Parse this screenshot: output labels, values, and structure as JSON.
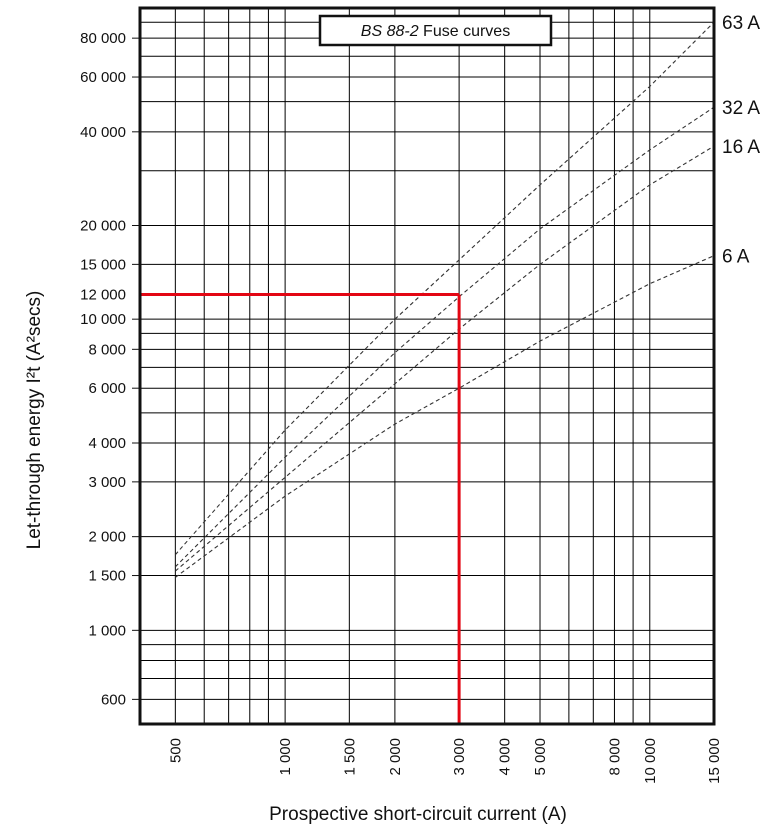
{
  "chart_data": {
    "type": "line",
    "title_italic": "BS 88-2",
    "title_rest": " Fuse curves",
    "xlabel": "Prospective short-circuit current (A)",
    "ylabel": "Let-through energy I²t (A²secs)",
    "xscale": "log",
    "yscale": "log",
    "xlim": [
      400,
      15000
    ],
    "ylim": [
      500,
      100000
    ],
    "grid": true,
    "x_grid": [
      500,
      600,
      700,
      800,
      900,
      1000,
      1500,
      2000,
      3000,
      4000,
      5000,
      6000,
      7000,
      8000,
      9000,
      10000,
      15000
    ],
    "y_grid": [
      600,
      700,
      800,
      900,
      1000,
      1500,
      2000,
      3000,
      4000,
      5000,
      6000,
      7000,
      8000,
      9000,
      10000,
      15000,
      20000,
      30000,
      40000,
      50000,
      60000,
      70000,
      80000,
      90000
    ],
    "x_ticks": [
      {
        "value": 500,
        "label": "500"
      },
      {
        "value": 1000,
        "label": "1 000"
      },
      {
        "value": 1500,
        "label": "1 500"
      },
      {
        "value": 2000,
        "label": "2 000"
      },
      {
        "value": 3000,
        "label": "3 000",
        "highlight": true
      },
      {
        "value": 4000,
        "label": "4 000"
      },
      {
        "value": 5000,
        "label": "5 000"
      },
      {
        "value": 8000,
        "label": "8 000"
      },
      {
        "value": 10000,
        "label": "10 000"
      },
      {
        "value": 15000,
        "label": "15 000"
      }
    ],
    "y_ticks": [
      {
        "value": 600,
        "label": "600"
      },
      {
        "value": 1000,
        "label": "1 000"
      },
      {
        "value": 1500,
        "label": "1 500"
      },
      {
        "value": 2000,
        "label": "2 000"
      },
      {
        "value": 3000,
        "label": "3 000"
      },
      {
        "value": 4000,
        "label": "4 000"
      },
      {
        "value": 6000,
        "label": "6 000"
      },
      {
        "value": 8000,
        "label": "8 000"
      },
      {
        "value": 10000,
        "label": "10 000"
      },
      {
        "value": 12000,
        "label": "12 000",
        "highlight": true
      },
      {
        "value": 15000,
        "label": "15 000"
      },
      {
        "value": 20000,
        "label": "20 000"
      },
      {
        "value": 40000,
        "label": "40 000"
      },
      {
        "value": 60000,
        "label": "60 000"
      },
      {
        "value": 80000,
        "label": "80 000"
      }
    ],
    "series": [
      {
        "name": "63 A",
        "x": [
          500,
          1000,
          2000,
          3000,
          5000,
          10000,
          15000
        ],
        "y": [
          1750,
          4400,
          10000,
          15500,
          27000,
          56000,
          90000
        ]
      },
      {
        "name": "32 A",
        "x": [
          500,
          1000,
          2000,
          3000,
          5000,
          10000,
          15000
        ],
        "y": [
          1600,
          3600,
          7800,
          11800,
          19500,
          35000,
          48000
        ]
      },
      {
        "name": "16 A",
        "x": [
          500,
          1000,
          2000,
          3000,
          5000,
          10000,
          15000
        ],
        "y": [
          1550,
          3100,
          6200,
          9300,
          15000,
          27000,
          36000
        ]
      },
      {
        "name": "6 A",
        "x": [
          500,
          1000,
          2000,
          3000,
          5000,
          10000,
          15000
        ],
        "y": [
          1480,
          2700,
          4600,
          6000,
          8500,
          13000,
          16000
        ]
      }
    ],
    "reference": {
      "x": 3000,
      "y": 12000,
      "color": "#e30613"
    },
    "colors": {
      "curve": "#333333",
      "grid": "#000000",
      "highlight": "#e30613"
    }
  }
}
